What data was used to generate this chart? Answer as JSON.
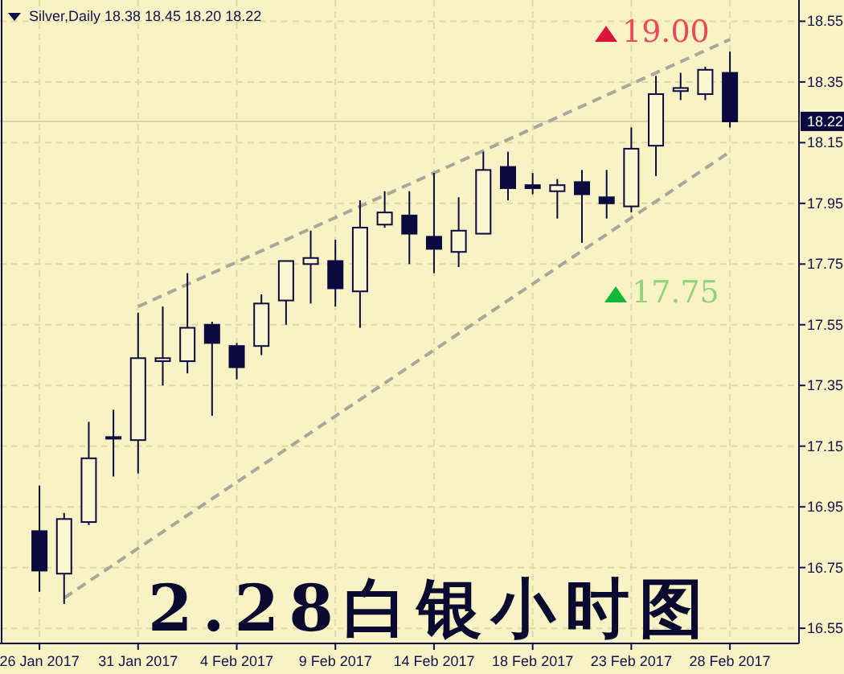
{
  "chart_data": {
    "type": "candlestick",
    "title": "Silver,Daily 18.38 18.45 18.20 18.22",
    "categories": [
      "26 Jan 2017",
      null,
      null,
      null,
      "31 Jan 2017",
      null,
      null,
      null,
      "4 Feb 2017",
      null,
      null,
      null,
      "9 Feb 2017",
      null,
      null,
      null,
      "14 Feb 2017",
      null,
      null,
      null,
      "18 Feb 2017",
      null,
      null,
      null,
      "23 Feb 2017",
      null,
      null,
      null,
      "28 Feb 2017"
    ],
    "ohlc": [
      [
        16.87,
        17.02,
        16.67,
        16.74
      ],
      [
        16.73,
        16.93,
        16.63,
        16.91
      ],
      [
        16.9,
        17.23,
        16.89,
        17.11
      ],
      [
        17.18,
        17.27,
        17.05,
        17.18
      ],
      [
        17.17,
        17.59,
        17.06,
        17.44
      ],
      [
        17.43,
        17.61,
        17.35,
        17.44
      ],
      [
        17.43,
        17.72,
        17.39,
        17.54
      ],
      [
        17.55,
        17.56,
        17.25,
        17.49
      ],
      [
        17.48,
        17.49,
        17.37,
        17.41
      ],
      [
        17.48,
        17.65,
        17.45,
        17.62
      ],
      [
        17.63,
        17.76,
        17.55,
        17.76
      ],
      [
        17.75,
        17.86,
        17.62,
        17.77
      ],
      [
        17.76,
        17.83,
        17.61,
        17.67
      ],
      [
        17.66,
        17.96,
        17.54,
        17.87
      ],
      [
        17.88,
        17.99,
        17.87,
        17.92
      ],
      [
        17.91,
        17.99,
        17.75,
        17.85
      ],
      [
        17.84,
        18.05,
        17.72,
        17.8
      ],
      [
        17.79,
        17.97,
        17.74,
        17.86
      ],
      [
        17.85,
        18.12,
        17.85,
        18.06
      ],
      [
        18.07,
        18.12,
        17.96,
        18.0
      ],
      [
        18.01,
        18.05,
        17.98,
        18.0
      ],
      [
        17.99,
        18.03,
        17.9,
        18.01
      ],
      [
        18.02,
        18.06,
        17.82,
        17.98
      ],
      [
        17.97,
        18.06,
        17.9,
        17.95
      ],
      [
        17.94,
        18.2,
        17.92,
        18.13
      ],
      [
        18.14,
        18.37,
        18.04,
        18.31
      ],
      [
        18.32,
        18.38,
        18.29,
        18.33
      ],
      [
        18.31,
        18.4,
        18.29,
        18.39
      ],
      [
        18.38,
        18.45,
        18.2,
        18.22
      ]
    ],
    "series": [
      {
        "type": "line",
        "values": [
          null,
          null,
          null,
          null,
          17.61,
          null,
          null,
          null,
          null,
          null,
          null,
          null,
          null,
          null,
          null,
          null,
          null,
          null,
          null,
          null,
          null,
          null,
          null,
          null,
          null,
          null,
          null,
          null,
          18.49
        ],
        "color": "#a9a69a",
        "line_style": "dashed"
      },
      {
        "type": "line",
        "values": [
          null,
          16.65,
          null,
          null,
          null,
          null,
          null,
          null,
          null,
          null,
          null,
          null,
          null,
          null,
          null,
          null,
          null,
          null,
          null,
          null,
          null,
          null,
          null,
          null,
          null,
          null,
          null,
          null,
          18.12
        ],
        "color": "#a9a69a",
        "line_style": "dashed"
      }
    ],
    "ylim": [
      16.5,
      18.62
    ],
    "yticks": [
      16.55,
      16.75,
      16.95,
      17.15,
      17.35,
      17.55,
      17.75,
      17.95,
      18.15,
      18.35,
      18.55
    ],
    "ref_lines": [
      {
        "axis": "y",
        "value": 18.22,
        "label": "18.22",
        "color": "#d8d0b0"
      }
    ],
    "grid": true,
    "annotations": [
      "19.00",
      "17.75",
      "2.28白银小时图"
    ]
  }
}
